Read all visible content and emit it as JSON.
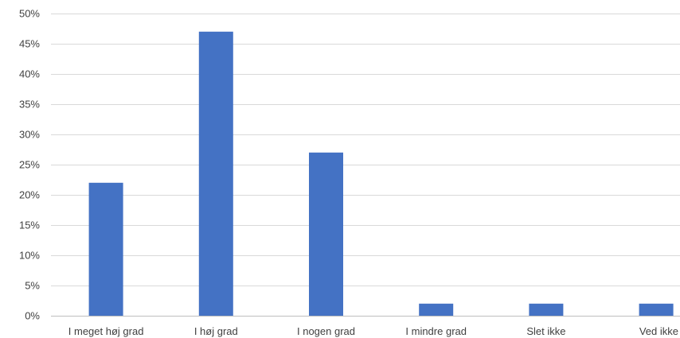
{
  "chart_data": {
    "type": "bar",
    "title": "",
    "xlabel": "",
    "ylabel": "",
    "categories": [
      "I meget høj grad",
      "I høj grad",
      "I nogen grad",
      "I mindre grad",
      "Slet ikke",
      "Ved ikke"
    ],
    "values": [
      22,
      47,
      27,
      2,
      2,
      2
    ],
    "ylim": [
      0,
      50
    ],
    "yticks": [
      0,
      5,
      10,
      15,
      20,
      25,
      30,
      35,
      40,
      45,
      50
    ],
    "ytick_labels": [
      "0%",
      "5%",
      "10%",
      "15%",
      "20%",
      "25%",
      "30%",
      "35%",
      "40%",
      "45%",
      "50%"
    ],
    "grid": true,
    "legend": "none",
    "bar_color": "#4472c4"
  }
}
